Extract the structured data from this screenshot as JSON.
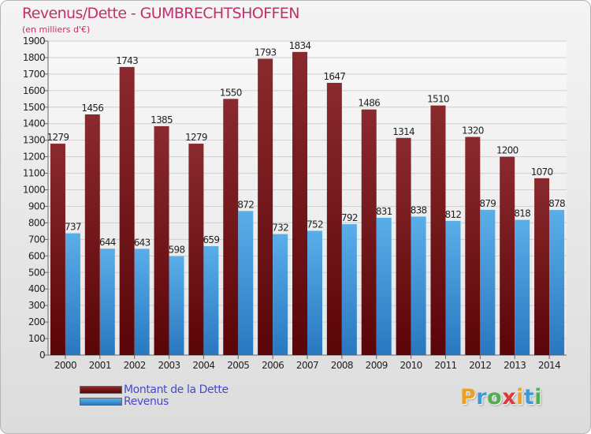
{
  "title": "Revenus/Dette - GUMBRECHTSHOFFEN",
  "unit_label": "(en milliers d'€)",
  "legend": [
    {
      "label": "Montant de la Dette",
      "color": "#7a1418"
    },
    {
      "label": "Revenus",
      "color": "#3d94d8"
    }
  ],
  "logo": {
    "letters": [
      "P",
      "r",
      "o",
      "x",
      "i",
      "t",
      "i"
    ],
    "colors": [
      "#f0a020",
      "#3c9ad8",
      "#52b04c",
      "#e03838",
      "#f0a020",
      "#3c9ad8",
      "#52b04c"
    ]
  },
  "chart_data": {
    "type": "bar",
    "categories": [
      "2000",
      "2001",
      "2002",
      "2003",
      "2004",
      "2005",
      "2006",
      "2007",
      "2008",
      "2009",
      "2010",
      "2011",
      "2012",
      "2013",
      "2014"
    ],
    "series": [
      {
        "name": "Montant de la Dette",
        "color": "#7a1418",
        "values": [
          1279,
          1456,
          1743,
          1385,
          1279,
          1550,
          1793,
          1834,
          1647,
          1486,
          1314,
          1510,
          1320,
          1200,
          1070
        ]
      },
      {
        "name": "Revenus",
        "color": "#3d94d8",
        "values": [
          737,
          644,
          643,
          598,
          659,
          872,
          732,
          752,
          792,
          831,
          838,
          812,
          879,
          818,
          878
        ]
      }
    ],
    "yticks": [
      0,
      100,
      200,
      300,
      400,
      500,
      600,
      700,
      800,
      900,
      1000,
      1100,
      1200,
      1300,
      1400,
      1500,
      1600,
      1700,
      1800,
      1900
    ],
    "ylim": [
      0,
      1900
    ],
    "grid": true,
    "legend_position": "bottom-left"
  }
}
